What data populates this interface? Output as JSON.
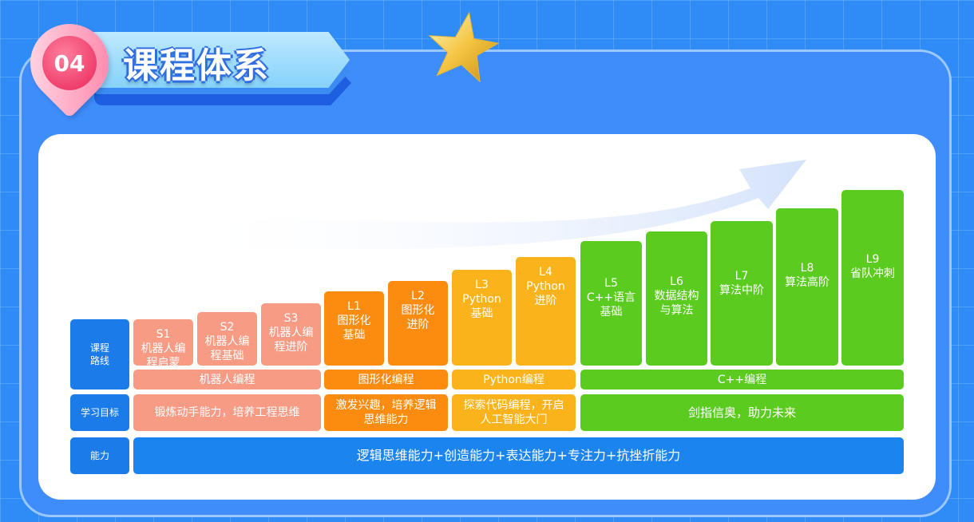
{
  "header": {
    "badge_number": "04",
    "title": "课程体系"
  },
  "rows": {
    "route": "课程\n路线",
    "goal": "学习目标",
    "ability": "能力"
  },
  "levels": [
    {
      "code": "S1",
      "name": "机器人编\n程启蒙"
    },
    {
      "code": "S2",
      "name": "机器人编\n程基础"
    },
    {
      "code": "S3",
      "name": "机器人编\n程进阶"
    },
    {
      "code": "L1",
      "name": "图形化\n基础"
    },
    {
      "code": "L2",
      "name": "图形化\n进阶"
    },
    {
      "code": "L3",
      "name": "Python\n基础"
    },
    {
      "code": "L4",
      "name": "Python\n进阶"
    },
    {
      "code": "L5",
      "name": "C++语言\n基础"
    },
    {
      "code": "L6",
      "name": "数据结构\n与算法"
    },
    {
      "code": "L7",
      "name": "算法中阶"
    },
    {
      "code": "L8",
      "name": "算法高阶"
    },
    {
      "code": "L9",
      "name": "省队冲刺"
    }
  ],
  "categories": [
    "机器人编程",
    "图形化编程",
    "Python编程",
    "C++编程"
  ],
  "goals": [
    "锻炼动手能力，培养工程思维",
    "激发兴趣，培养逻辑\n思维能力",
    "探索代码编程，开启\n人工智能大门",
    "剑指信奥，助力未来"
  ],
  "ability_text": "逻辑思维能力+创造能力+表达能力+专注力+抗挫折能力",
  "colors": {
    "robot": "#f79b85",
    "graphic": "#fb8c10",
    "python": "#fbb31b",
    "cpp": "#5bcc1f",
    "row_label": "#1b7be8",
    "ability_bar": "#1c84ef",
    "background": "#2f8cf6"
  },
  "icons": {
    "decoration": "gold-star-icon",
    "trend": "rising-arrow-icon"
  }
}
